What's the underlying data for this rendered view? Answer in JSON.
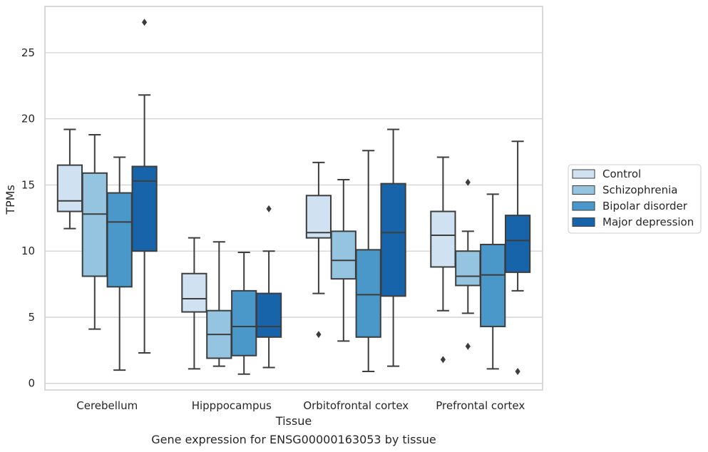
{
  "chart_data": {
    "type": "box",
    "title": "",
    "caption": "Gene expression for ENSG00000163053 by tissue",
    "xlabel": "Tissue",
    "ylabel": "TPMs",
    "ylim": [
      -0.5,
      28.5
    ],
    "yticks": [
      0,
      5,
      10,
      15,
      20,
      25
    ],
    "grid": "horizontal",
    "legend_position": "right",
    "categories": [
      "Cerebellum",
      "Hipppocampus",
      "Orbitofrontal cortex",
      "Prefrontal cortex"
    ],
    "series": [
      {
        "name": "Control",
        "color": "#d0e1f2",
        "boxes": [
          {
            "whislo": 11.7,
            "q1": 13.0,
            "med": 13.8,
            "q3": 16.5,
            "whishi": 19.2,
            "fliers": []
          },
          {
            "whislo": 1.1,
            "q1": 5.4,
            "med": 6.4,
            "q3": 8.3,
            "whishi": 11.0,
            "fliers": []
          },
          {
            "whislo": 6.8,
            "q1": 11.0,
            "med": 11.4,
            "q3": 14.2,
            "whishi": 16.7,
            "fliers": [
              3.7
            ]
          },
          {
            "whislo": 5.5,
            "q1": 8.8,
            "med": 11.2,
            "q3": 13.0,
            "whishi": 17.1,
            "fliers": [
              1.8
            ]
          }
        ]
      },
      {
        "name": "Schizophrenia",
        "color": "#94c4df",
        "boxes": [
          {
            "whislo": 4.1,
            "q1": 8.1,
            "med": 12.8,
            "q3": 15.9,
            "whishi": 18.8,
            "fliers": []
          },
          {
            "whislo": 1.3,
            "q1": 1.9,
            "med": 3.7,
            "q3": 5.5,
            "whishi": 10.7,
            "fliers": []
          },
          {
            "whislo": 3.2,
            "q1": 7.9,
            "med": 9.3,
            "q3": 11.5,
            "whishi": 15.4,
            "fliers": []
          },
          {
            "whislo": 5.3,
            "q1": 7.4,
            "med": 8.1,
            "q3": 10.0,
            "whishi": 11.5,
            "fliers": [
              15.2,
              2.8
            ]
          }
        ]
      },
      {
        "name": "Bipolar disorder",
        "color": "#4a98c9",
        "boxes": [
          {
            "whislo": 1.0,
            "q1": 7.3,
            "med": 12.2,
            "q3": 14.4,
            "whishi": 17.1,
            "fliers": []
          },
          {
            "whislo": 0.7,
            "q1": 2.1,
            "med": 4.3,
            "q3": 7.0,
            "whishi": 9.9,
            "fliers": []
          },
          {
            "whislo": 0.9,
            "q1": 3.5,
            "med": 6.7,
            "q3": 10.1,
            "whishi": 17.6,
            "fliers": []
          },
          {
            "whislo": 1.1,
            "q1": 4.3,
            "med": 8.2,
            "q3": 10.5,
            "whishi": 14.3,
            "fliers": []
          }
        ]
      },
      {
        "name": "Major depression",
        "color": "#1764ab",
        "boxes": [
          {
            "whislo": 2.3,
            "q1": 10.0,
            "med": 15.3,
            "q3": 16.4,
            "whishi": 21.8,
            "fliers": [
              27.3
            ]
          },
          {
            "whislo": 1.2,
            "q1": 3.5,
            "med": 4.3,
            "q3": 6.8,
            "whishi": 10.0,
            "fliers": [
              13.2
            ]
          },
          {
            "whislo": 1.3,
            "q1": 6.6,
            "med": 11.4,
            "q3": 15.1,
            "whishi": 19.2,
            "fliers": []
          },
          {
            "whislo": 7.0,
            "q1": 8.4,
            "med": 10.8,
            "q3": 12.7,
            "whishi": 18.3,
            "fliers": [
              0.9
            ]
          }
        ]
      }
    ]
  }
}
